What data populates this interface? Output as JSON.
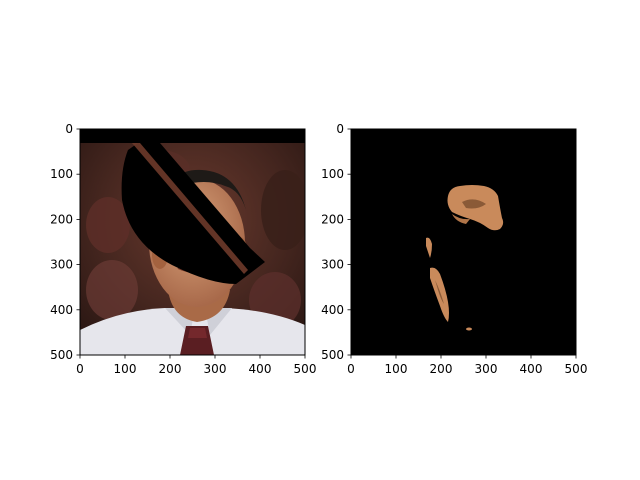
{
  "chart_data": [
    {
      "type": "image",
      "content": "masked face photo: man in white shirt and maroon patterned tie, dark blurred crowd background; solid black top band and black tilted elliptical occlusion bar over forehead, eye and mouth",
      "xlim": [
        0,
        500
      ],
      "ylim": [
        500,
        0
      ],
      "xticks": [
        0,
        100,
        200,
        300,
        400,
        500
      ],
      "yticks": [
        0,
        100,
        200,
        300,
        400,
        500
      ],
      "xtick_labels": [
        "0",
        "100",
        "200",
        "300",
        "400",
        "500"
      ],
      "ytick_labels": [
        "0",
        "100",
        "200",
        "300",
        "400",
        "500"
      ]
    },
    {
      "type": "image",
      "content": "segmentation output: black background with only skin-colored face regions visible (forehead/eye area and a sliver along the left cheek)",
      "xlim": [
        0,
        500
      ],
      "ylim": [
        500,
        0
      ],
      "xticks": [
        0,
        100,
        200,
        300,
        400,
        500
      ],
      "yticks": [
        0,
        100,
        200,
        300,
        400,
        500
      ],
      "xtick_labels": [
        "0",
        "100",
        "200",
        "300",
        "400",
        "500"
      ],
      "ytick_labels": [
        "0",
        "100",
        "200",
        "300",
        "400",
        "500"
      ]
    }
  ],
  "colors": {
    "background_mask": "#000000",
    "skin": "#c98a5b",
    "skin_shadow": "#8a5a37",
    "shirt": "#e8e8ee",
    "tie": "#5a1e22",
    "crowd": "#4a2a22",
    "hair": "#1e1a17"
  }
}
